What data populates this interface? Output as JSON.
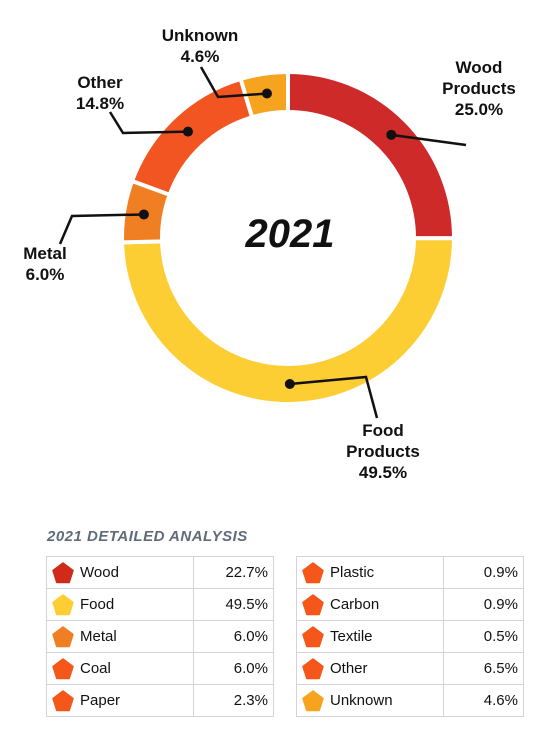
{
  "chart_data": {
    "type": "pie",
    "title": "2021",
    "slices": [
      {
        "label": "Wood\nProducts\n25.0%",
        "value": 25.0,
        "color": "#cf2a2a"
      },
      {
        "label": "Food\nProducts\n49.5%",
        "value": 49.5,
        "color": "#fdcd34"
      },
      {
        "label": "Metal\n6.0%",
        "value": 6.0,
        "color": "#f07e22"
      },
      {
        "label": "Other\n14.8%",
        "value": 14.8,
        "color": "#f25522"
      },
      {
        "label": "Unknown\n4.6%",
        "value": 4.6,
        "color": "#f6a420"
      }
    ]
  },
  "table": {
    "title": "2021 DETAILED ANALYSIS",
    "left": [
      {
        "name": "Wood",
        "value": "22.7%",
        "color": "#cf2a1a"
      },
      {
        "name": "Food",
        "value": "49.5%",
        "color": "#fdcd34"
      },
      {
        "name": "Metal",
        "value": "6.0%",
        "color": "#f07e22"
      },
      {
        "name": "Coal",
        "value": "6.0%",
        "color": "#f5571b"
      },
      {
        "name": "Paper",
        "value": "2.3%",
        "color": "#f5571b"
      }
    ],
    "right": [
      {
        "name": "Plastic",
        "value": "0.9%",
        "color": "#f5571b"
      },
      {
        "name": "Carbon",
        "value": "0.9%",
        "color": "#f5571b"
      },
      {
        "name": "Textile",
        "value": "0.5%",
        "color": "#f5571b"
      },
      {
        "name": "Other",
        "value": "6.5%",
        "color": "#f5571b"
      },
      {
        "name": "Unknown",
        "value": "4.6%",
        "color": "#f6a420"
      }
    ]
  }
}
